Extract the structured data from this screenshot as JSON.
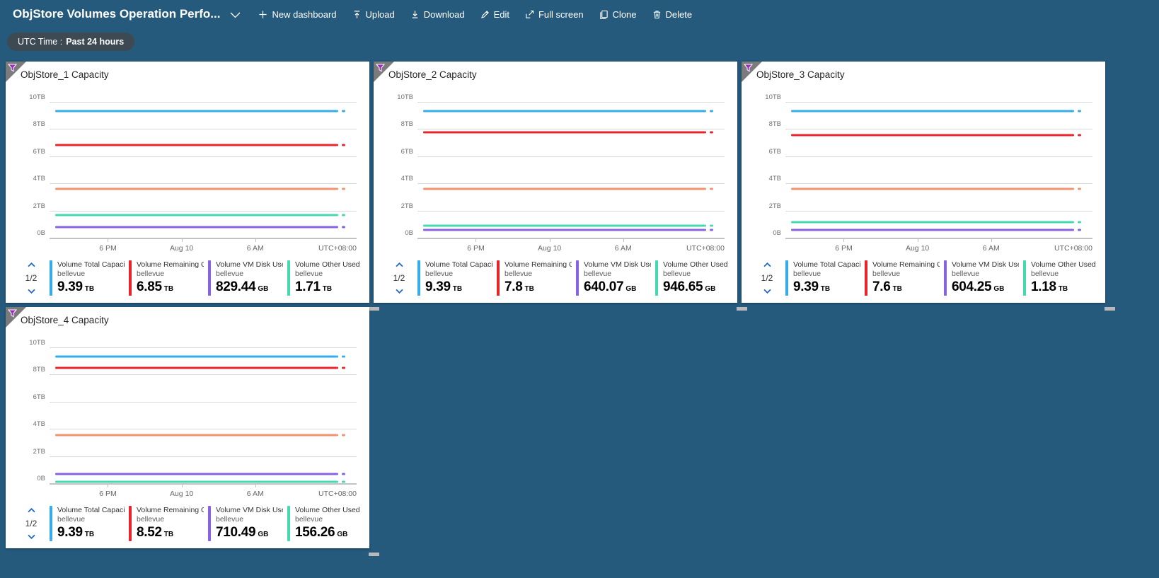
{
  "topbar": {
    "title": "ObjStore Volumes Operation Perfo...",
    "buttons": {
      "new_dashboard": "New dashboard",
      "upload": "Upload",
      "download": "Download",
      "edit": "Edit",
      "fullscreen": "Full screen",
      "clone": "Clone",
      "delete": "Delete"
    }
  },
  "filter_pill": {
    "label": "UTC Time :",
    "value": "Past 24 hours"
  },
  "pager": {
    "label": "1/2"
  },
  "colors": {
    "background": "#255A7D",
    "pill": "#3D4A54",
    "total": "#35ACE8",
    "remaining": "#E8242D",
    "vm_disk": "#8763E3",
    "other": "#45D9B2",
    "extra_line": "#F2926E",
    "funnel": "#9A2BBE",
    "pager_chevron": "#2064C6"
  },
  "chart_data": [
    {
      "type": "line",
      "title": "ObjStore_1 Capacity",
      "ylim": [
        0,
        10
      ],
      "y_ticks": [
        "10TB",
        "8TB",
        "6TB",
        "4TB",
        "2TB",
        "0B"
      ],
      "x_ticks": [
        "6 PM",
        "Aug 10",
        "6 AM"
      ],
      "tz": "UTC+08:00",
      "legend_pages": "1/2",
      "series": [
        {
          "name": "Volume Total Capacit...",
          "resource": "bellevue",
          "value": "9.39",
          "unit": "TB",
          "tb": 9.39,
          "color": "#35ACE8"
        },
        {
          "name": "Volume Remaining Cap...",
          "resource": "bellevue",
          "value": "6.85",
          "unit": "TB",
          "tb": 6.85,
          "color": "#E8242D"
        },
        {
          "name": "Volume VM Disk Used ...",
          "resource": "bellevue",
          "value": "829.44",
          "unit": "GB",
          "tb": 0.83,
          "color": "#8763E3"
        },
        {
          "name": "Volume Other Used Ca...",
          "resource": "bellevue",
          "value": "1.71",
          "unit": "TB",
          "tb": 1.71,
          "color": "#45D9B2"
        },
        {
          "name": "",
          "resource": "",
          "value": "",
          "unit": "",
          "tb": 3.65,
          "color": "#F2926E"
        }
      ]
    },
    {
      "type": "line",
      "title": "ObjStore_2 Capacity",
      "ylim": [
        0,
        10
      ],
      "y_ticks": [
        "10TB",
        "8TB",
        "6TB",
        "4TB",
        "2TB",
        "0B"
      ],
      "x_ticks": [
        "6 PM",
        "Aug 10",
        "6 AM"
      ],
      "tz": "UTC+08:00",
      "legend_pages": "1/2",
      "series": [
        {
          "name": "Volume Total Capacit...",
          "resource": "bellevue",
          "value": "9.39",
          "unit": "TB",
          "tb": 9.39,
          "color": "#35ACE8"
        },
        {
          "name": "Volume Remaining Cap...",
          "resource": "bellevue",
          "value": "7.8",
          "unit": "TB",
          "tb": 7.8,
          "color": "#E8242D"
        },
        {
          "name": "Volume VM Disk Used ...",
          "resource": "bellevue",
          "value": "640.07",
          "unit": "GB",
          "tb": 0.64,
          "color": "#8763E3"
        },
        {
          "name": "Volume Other Used Ca...",
          "resource": "bellevue",
          "value": "946.65",
          "unit": "GB",
          "tb": 0.95,
          "color": "#45D9B2"
        },
        {
          "name": "",
          "resource": "",
          "value": "",
          "unit": "",
          "tb": 3.65,
          "color": "#F2926E"
        }
      ]
    },
    {
      "type": "line",
      "title": "ObjStore_3 Capacity",
      "ylim": [
        0,
        10
      ],
      "y_ticks": [
        "10TB",
        "8TB",
        "6TB",
        "4TB",
        "2TB",
        "0B"
      ],
      "x_ticks": [
        "6 PM",
        "Aug 10",
        "6 AM"
      ],
      "tz": "UTC+08:00",
      "legend_pages": "1/2",
      "series": [
        {
          "name": "Volume Total Capacit...",
          "resource": "bellevue",
          "value": "9.39",
          "unit": "TB",
          "tb": 9.39,
          "color": "#35ACE8"
        },
        {
          "name": "Volume Remaining Cap...",
          "resource": "bellevue",
          "value": "7.6",
          "unit": "TB",
          "tb": 7.6,
          "color": "#E8242D"
        },
        {
          "name": "Volume VM Disk Used ...",
          "resource": "bellevue",
          "value": "604.25",
          "unit": "GB",
          "tb": 0.6,
          "color": "#8763E3"
        },
        {
          "name": "Volume Other Used Ca...",
          "resource": "bellevue",
          "value": "1.18",
          "unit": "TB",
          "tb": 1.18,
          "color": "#45D9B2"
        },
        {
          "name": "",
          "resource": "",
          "value": "",
          "unit": "",
          "tb": 3.65,
          "color": "#F2926E"
        }
      ]
    },
    {
      "type": "line",
      "title": "ObjStore_4 Capacity",
      "ylim": [
        0,
        10
      ],
      "y_ticks": [
        "10TB",
        "8TB",
        "6TB",
        "4TB",
        "2TB",
        "0B"
      ],
      "x_ticks": [
        "6 PM",
        "Aug 10",
        "6 AM"
      ],
      "tz": "UTC+08:00",
      "legend_pages": "1/2",
      "series": [
        {
          "name": "Volume Total Capacit...",
          "resource": "bellevue",
          "value": "9.39",
          "unit": "TB",
          "tb": 9.39,
          "color": "#35ACE8"
        },
        {
          "name": "Volume Remaining Cap...",
          "resource": "bellevue",
          "value": "8.52",
          "unit": "TB",
          "tb": 8.52,
          "color": "#E8242D"
        },
        {
          "name": "Volume VM Disk Used ...",
          "resource": "bellevue",
          "value": "710.49",
          "unit": "GB",
          "tb": 0.71,
          "color": "#8763E3"
        },
        {
          "name": "Volume Other Used Ca...",
          "resource": "bellevue",
          "value": "156.26",
          "unit": "GB",
          "tb": 0.156,
          "color": "#45D9B2"
        },
        {
          "name": "",
          "resource": "",
          "value": "",
          "unit": "",
          "tb": 3.6,
          "color": "#F2926E"
        }
      ]
    }
  ]
}
